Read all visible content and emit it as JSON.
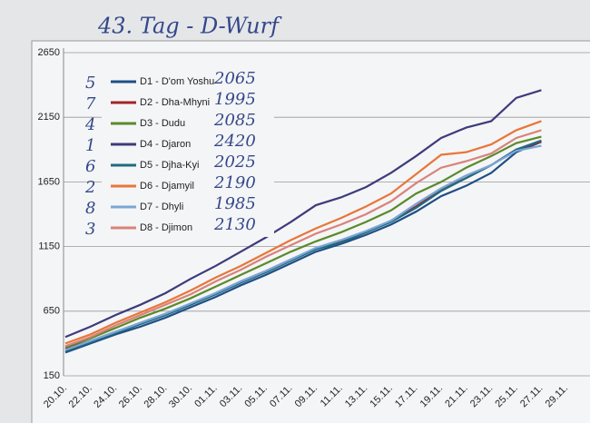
{
  "chart_data": {
    "type": "line",
    "title": "43. Tag - D-Wurf",
    "categories": [
      "20.10.",
      "22.10.",
      "24.10.",
      "26.10.",
      "28.10.",
      "30.10.",
      "01.11.",
      "03.11.",
      "05.11.",
      "07.11.",
      "09.11.",
      "11.11.",
      "13.11.",
      "15.11.",
      "17.11.",
      "19.11.",
      "21.11.",
      "23.11.",
      "25.11.",
      "27.11.",
      "29.11."
    ],
    "ylim": [
      150,
      2650
    ],
    "yticks": [
      150,
      650,
      1150,
      1650,
      2150,
      2650
    ],
    "grid": true,
    "series": [
      {
        "name": "D1 - D'om Yoshu",
        "color": "#1f4e86",
        "values": [
          330,
          400,
          470,
          530,
          600,
          680,
          760,
          850,
          930,
          1020,
          1110,
          1170,
          1240,
          1320,
          1420,
          1540,
          1620,
          1720,
          1880,
          1960,
          null
        ]
      },
      {
        "name": "D2 - Dha-Mhyni",
        "color": "#a5222a",
        "values": [
          360,
          420,
          490,
          560,
          630,
          700,
          790,
          880,
          960,
          1050,
          1130,
          1190,
          1260,
          1350,
          1460,
          1590,
          1680,
          1780,
          1900,
          1960,
          null
        ]
      },
      {
        "name": "D3 - Dudu",
        "color": "#5a8a2a",
        "values": [
          370,
          440,
          520,
          600,
          670,
          750,
          840,
          930,
          1020,
          1110,
          1190,
          1260,
          1340,
          1430,
          1560,
          1650,
          1760,
          1850,
          1950,
          2000,
          null
        ]
      },
      {
        "name": "D4 - Djaron",
        "color": "#3d3b7c",
        "values": [
          450,
          530,
          620,
          700,
          790,
          900,
          1000,
          1110,
          1220,
          1340,
          1470,
          1530,
          1610,
          1720,
          1850,
          1990,
          2070,
          2120,
          2300,
          2360,
          null
        ]
      },
      {
        "name": "D5 - Djha-Kyi",
        "color": "#1f6b80",
        "values": [
          340,
          410,
          480,
          550,
          620,
          700,
          780,
          870,
          950,
          1040,
          1130,
          1180,
          1260,
          1340,
          1450,
          1580,
          1680,
          1780,
          1900,
          1970,
          null
        ]
      },
      {
        "name": "D6 - Djamyil",
        "color": "#e8763a",
        "values": [
          400,
          470,
          560,
          640,
          720,
          810,
          910,
          1000,
          1100,
          1200,
          1290,
          1370,
          1460,
          1560,
          1710,
          1860,
          1880,
          1940,
          2050,
          2120,
          null
        ]
      },
      {
        "name": "D7 - Dhyli",
        "color": "#7aa6d6",
        "values": [
          350,
          420,
          490,
          560,
          630,
          710,
          790,
          880,
          960,
          1050,
          1140,
          1200,
          1270,
          1350,
          1480,
          1600,
          1700,
          1780,
          1890,
          1930,
          null
        ]
      },
      {
        "name": "D8 - Djimon",
        "color": "#d9837a",
        "values": [
          380,
          450,
          540,
          620,
          700,
          780,
          880,
          970,
          1070,
          1160,
          1250,
          1320,
          1400,
          1500,
          1640,
          1760,
          1810,
          1870,
          1990,
          2050,
          null
        ]
      }
    ],
    "annotations": {
      "ranks": [
        "5",
        "7",
        "4",
        "1",
        "6",
        "2",
        "8",
        "3"
      ],
      "weights": [
        "2065",
        "1995",
        "2085",
        "2420",
        "2025",
        "2190",
        "1985",
        "2130"
      ]
    }
  }
}
